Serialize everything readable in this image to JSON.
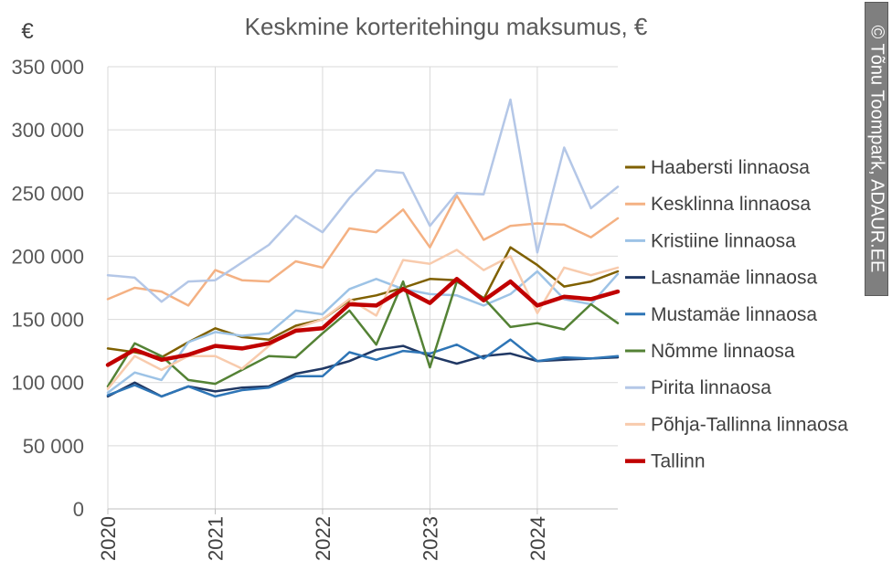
{
  "chart_data": {
    "type": "line",
    "title": "Keskmine korteritehingu maksumus, €",
    "ylabel": "€",
    "ylim": [
      0,
      350000
    ],
    "y_ticks": [
      0,
      50000,
      100000,
      150000,
      200000,
      250000,
      300000,
      350000
    ],
    "y_tick_labels": [
      "0",
      "50 000",
      "100 000",
      "150 000",
      "200 000",
      "250 000",
      "300 000",
      "350 000"
    ],
    "x_tick_labels": [
      "2020",
      "2021",
      "2022",
      "2023",
      "2024"
    ],
    "x_tick_positions": [
      0,
      4,
      8,
      12,
      16
    ],
    "x_points": 20,
    "grid": "vertical and horizontal",
    "legend_position": "right",
    "series": [
      {
        "name": "Haabersti linnaosa",
        "color": "#7f6000",
        "values": [
          127000,
          124000,
          120000,
          132000,
          143000,
          136000,
          134000,
          145000,
          150000,
          165000,
          169000,
          175000,
          182000,
          181000,
          166000,
          207000,
          193000,
          176000,
          180000,
          188000
        ]
      },
      {
        "name": "Kesklinna linnaosa",
        "color": "#f4b183",
        "values": [
          166000,
          175000,
          172000,
          161000,
          189000,
          181000,
          180000,
          196000,
          191000,
          222000,
          219000,
          237000,
          207000,
          248000,
          213000,
          224000,
          226000,
          225000,
          215000,
          230000
        ]
      },
      {
        "name": "Kristiine linnaosa",
        "color": "#9dc3e6",
        "values": [
          92000,
          108000,
          102000,
          132000,
          140000,
          137000,
          139000,
          157000,
          154000,
          174000,
          182000,
          174000,
          170000,
          169000,
          161000,
          170000,
          188000,
          166000,
          162000,
          186000
        ]
      },
      {
        "name": "Lasnamäe linnaosa",
        "color": "#203864",
        "values": [
          89000,
          100000,
          89000,
          97000,
          93000,
          96000,
          97000,
          107000,
          111000,
          117000,
          126000,
          129000,
          121000,
          115000,
          121000,
          123000,
          117000,
          118000,
          119000,
          120000
        ]
      },
      {
        "name": "Mustamäe linnaosa",
        "color": "#2e75b6",
        "values": [
          90000,
          98000,
          89000,
          97000,
          89000,
          94000,
          96000,
          105000,
          105000,
          124000,
          118000,
          125000,
          123000,
          130000,
          119000,
          134000,
          117000,
          120000,
          119000,
          121000
        ]
      },
      {
        "name": "Nõmme linnaosa",
        "color": "#548235",
        "values": [
          97000,
          131000,
          121000,
          102000,
          99000,
          110000,
          121000,
          120000,
          139000,
          157000,
          130000,
          180000,
          112000,
          180000,
          167000,
          144000,
          147000,
          142000,
          162000,
          147000
        ]
      },
      {
        "name": "Pirita linnaosa",
        "color": "#b4c7e7",
        "values": [
          185000,
          183000,
          164000,
          180000,
          181000,
          195000,
          209000,
          232000,
          219000,
          246000,
          268000,
          266000,
          224000,
          250000,
          249000,
          324000,
          203000,
          286000,
          238000,
          255000
        ]
      },
      {
        "name": "Põhja-Tallinna linnaosa",
        "color": "#f8cbad",
        "values": [
          95000,
          121000,
          110000,
          121000,
          121000,
          111000,
          129000,
          143000,
          150000,
          166000,
          153000,
          197000,
          194000,
          205000,
          189000,
          200000,
          155000,
          191000,
          185000,
          191000
        ]
      },
      {
        "name": "Tallinn",
        "color": "#c00000",
        "values": [
          114000,
          126000,
          118000,
          122000,
          129000,
          127000,
          131000,
          141000,
          143000,
          162000,
          161000,
          174000,
          163000,
          182000,
          165000,
          180000,
          161000,
          168000,
          166000,
          172000
        ]
      }
    ]
  },
  "credit": {
    "text": "© Tõnu Toompark, ADAUR.EE"
  }
}
